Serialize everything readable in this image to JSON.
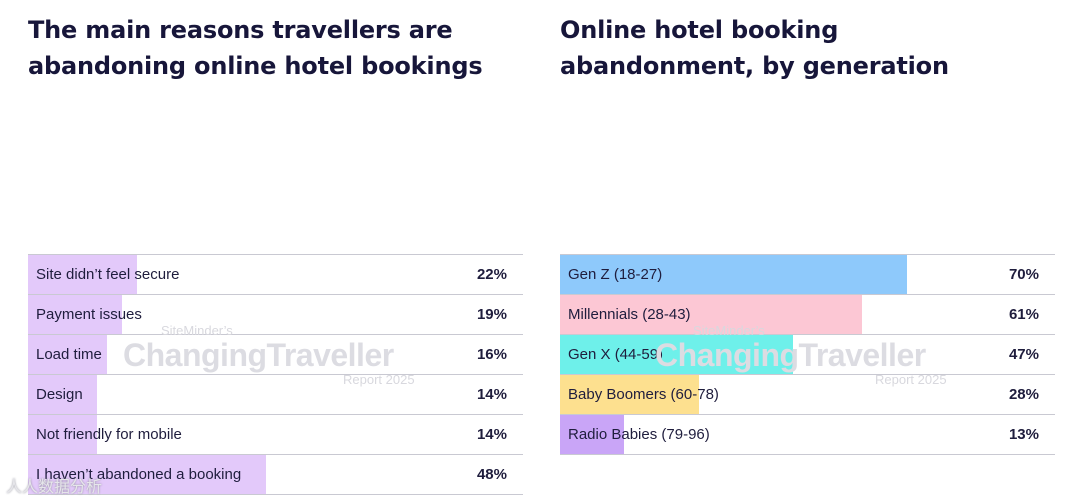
{
  "chart_data": [
    {
      "type": "bar",
      "orientation": "horizontal",
      "title": "The main reasons travellers are abandoning online hotel bookings",
      "categories": [
        "Site didn’t feel secure",
        "Payment issues",
        "Load time",
        "Design",
        "Not friendly for mobile",
        "I haven’t abandoned a booking"
      ],
      "values": [
        22,
        19,
        16,
        14,
        14,
        48
      ],
      "value_labels": [
        "22%",
        "19%",
        "16%",
        "14%",
        "14%",
        "48%"
      ],
      "bar_color": "#e3c9fa",
      "xlim": [
        0,
        100
      ],
      "grid": false,
      "legend": "none"
    },
    {
      "type": "bar",
      "orientation": "horizontal",
      "title": "Online hotel booking abandonment, by generation",
      "categories": [
        "Gen Z (18-27)",
        "Millennials (28-43)",
        "Gen X (44-59)",
        "Baby Boomers (60-78)",
        "Radio Babies (79-96)"
      ],
      "values": [
        70,
        61,
        47,
        28,
        13
      ],
      "value_labels": [
        "70%",
        "61%",
        "47%",
        "28%",
        "13%"
      ],
      "bar_colors": [
        "#8ec9fb",
        "#fcc7d4",
        "#6ef0ea",
        "#fde08f",
        "#c9a5f7"
      ],
      "xlim": [
        0,
        100
      ],
      "grid": false,
      "legend": "none"
    }
  ],
  "watermark": {
    "pre": "SiteMinder’s",
    "main": "ChangingTraveller",
    "post": "Report 2025"
  },
  "corner_watermark": "人人数据分析"
}
